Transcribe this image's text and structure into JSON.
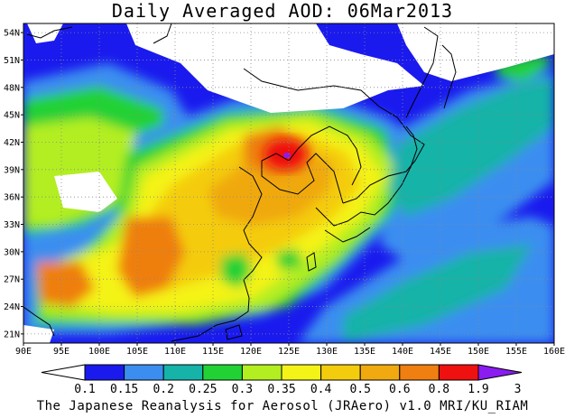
{
  "title": "Daily Averaged AOD: 06Mar2013",
  "credit": "The Japanese Reanalysis for Aerosol (JRAero) v1.0 MRI/KU_RIAM",
  "map": {
    "lon_range": [
      90,
      160
    ],
    "lat_range": [
      20,
      55
    ],
    "lon_ticks": [
      "90E",
      "95E",
      "100E",
      "105E",
      "110E",
      "115E",
      "120E",
      "125E",
      "130E",
      "135E",
      "140E",
      "145E",
      "150E",
      "155E",
      "160E"
    ],
    "lat_ticks": [
      "54N",
      "51N",
      "48N",
      "45N",
      "42N",
      "39N",
      "36N",
      "33N",
      "30N",
      "27N",
      "24N",
      "21N"
    ],
    "grid": true
  },
  "colorbar": {
    "labels": [
      "0.1",
      "0.15",
      "0.2",
      "0.25",
      "0.3",
      "0.35",
      "0.4",
      "0.5",
      "0.6",
      "0.8",
      "1.9",
      "3"
    ],
    "colors": [
      "#ffffff",
      "#1a1aee",
      "#3b8ef0",
      "#16b3a8",
      "#22d235",
      "#b2ee20",
      "#f4f318",
      "#f4cc0e",
      "#f0a90f",
      "#ef7f11",
      "#ef1010",
      "#8a1cf2"
    ]
  }
}
